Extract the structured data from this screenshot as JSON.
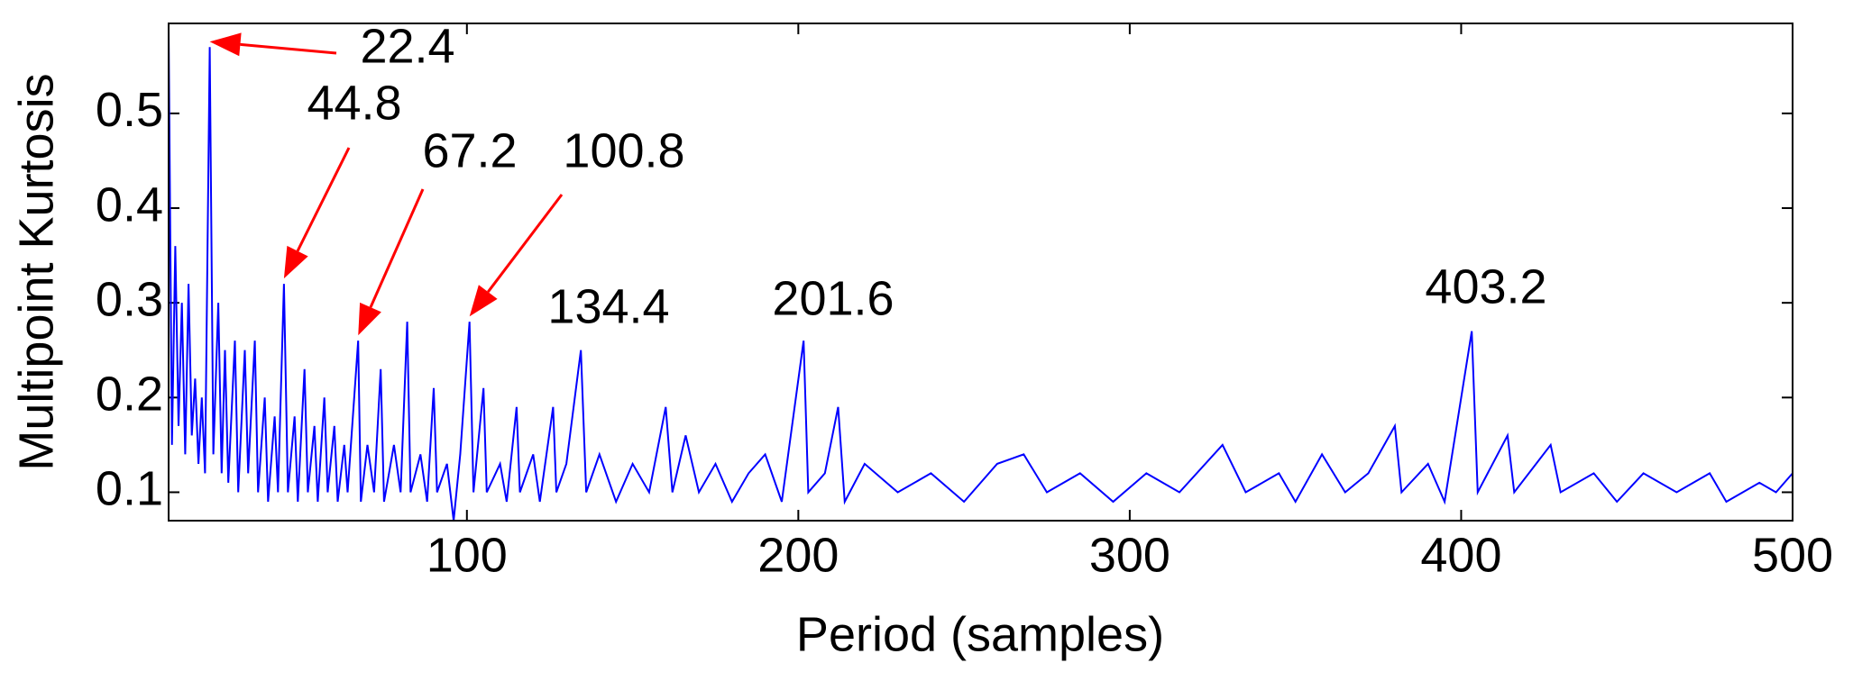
{
  "chart_data": {
    "type": "line",
    "xlabel": "Period (samples)",
    "ylabel": "Multipoint Kurtosis",
    "color": "#0000ff",
    "arrow_color": "#ff0000",
    "xlim": [
      10,
      500
    ],
    "xticks": [
      100,
      200,
      300,
      400,
      500
    ],
    "ylim": [
      0.07,
      0.595
    ],
    "yticks": [
      0.1,
      0.2,
      0.3,
      0.4,
      0.5
    ],
    "grid": false,
    "x": [
      10,
      11,
      12,
      13,
      14,
      15,
      16,
      17,
      18,
      19,
      20,
      21,
      22.4,
      23.5,
      25,
      26,
      27,
      28,
      30,
      31,
      33,
      34,
      36,
      37,
      39,
      40,
      42,
      43,
      44.8,
      46,
      48,
      49,
      51,
      52,
      54,
      55,
      57,
      58,
      60,
      61,
      63,
      64,
      67.2,
      68,
      70,
      72,
      74,
      75,
      78,
      80,
      82,
      83,
      86,
      88,
      90,
      91,
      94,
      96,
      98,
      100.8,
      102,
      105,
      106,
      110,
      112,
      115,
      116,
      120,
      122,
      126,
      127,
      130,
      134.4,
      136,
      140,
      145,
      150,
      155,
      160,
      162,
      166,
      170,
      175,
      180,
      185,
      190,
      195,
      201.6,
      203,
      208,
      212,
      214,
      220,
      230,
      240,
      250,
      260,
      268,
      275,
      285,
      295,
      305,
      315,
      328,
      335,
      345,
      350,
      358,
      365,
      372,
      380,
      382,
      390,
      395,
      403.2,
      405,
      414,
      416,
      427,
      430,
      440,
      447,
      455,
      465,
      475,
      480,
      490,
      495,
      500
    ],
    "values": [
      0.59,
      0.15,
      0.36,
      0.17,
      0.3,
      0.14,
      0.32,
      0.16,
      0.22,
      0.13,
      0.2,
      0.12,
      0.57,
      0.14,
      0.3,
      0.12,
      0.25,
      0.11,
      0.26,
      0.1,
      0.25,
      0.12,
      0.26,
      0.1,
      0.2,
      0.09,
      0.18,
      0.1,
      0.32,
      0.1,
      0.18,
      0.09,
      0.23,
      0.1,
      0.17,
      0.09,
      0.2,
      0.1,
      0.17,
      0.09,
      0.15,
      0.1,
      0.26,
      0.09,
      0.15,
      0.1,
      0.23,
      0.09,
      0.15,
      0.1,
      0.28,
      0.1,
      0.14,
      0.09,
      0.21,
      0.1,
      0.13,
      0.07,
      0.14,
      0.28,
      0.1,
      0.21,
      0.1,
      0.13,
      0.09,
      0.19,
      0.1,
      0.14,
      0.09,
      0.19,
      0.1,
      0.13,
      0.25,
      0.1,
      0.14,
      0.09,
      0.13,
      0.1,
      0.19,
      0.1,
      0.16,
      0.1,
      0.13,
      0.09,
      0.12,
      0.14,
      0.09,
      0.26,
      0.1,
      0.12,
      0.19,
      0.09,
      0.13,
      0.1,
      0.12,
      0.09,
      0.13,
      0.14,
      0.1,
      0.12,
      0.09,
      0.12,
      0.1,
      0.15,
      0.1,
      0.12,
      0.09,
      0.14,
      0.1,
      0.12,
      0.17,
      0.1,
      0.13,
      0.09,
      0.27,
      0.1,
      0.16,
      0.1,
      0.15,
      0.1,
      0.12,
      0.09,
      0.12,
      0.1,
      0.12,
      0.09,
      0.11,
      0.1,
      0.12
    ],
    "annotations": [
      {
        "text": "22.4",
        "x": 22.4,
        "y": 0.57,
        "arrow": true
      },
      {
        "text": "44.8",
        "x": 44.8,
        "y": 0.32,
        "arrow": true
      },
      {
        "text": "67.2",
        "x": 67.2,
        "y": 0.26,
        "arrow": true
      },
      {
        "text": "100.8",
        "x": 100.8,
        "y": 0.28,
        "arrow": true
      },
      {
        "text": "134.4",
        "x": 134.4,
        "y": 0.25,
        "arrow": false
      },
      {
        "text": "201.6",
        "x": 201.6,
        "y": 0.26,
        "arrow": false
      },
      {
        "text": "403.2",
        "x": 403.2,
        "y": 0.27,
        "arrow": false
      }
    ]
  }
}
